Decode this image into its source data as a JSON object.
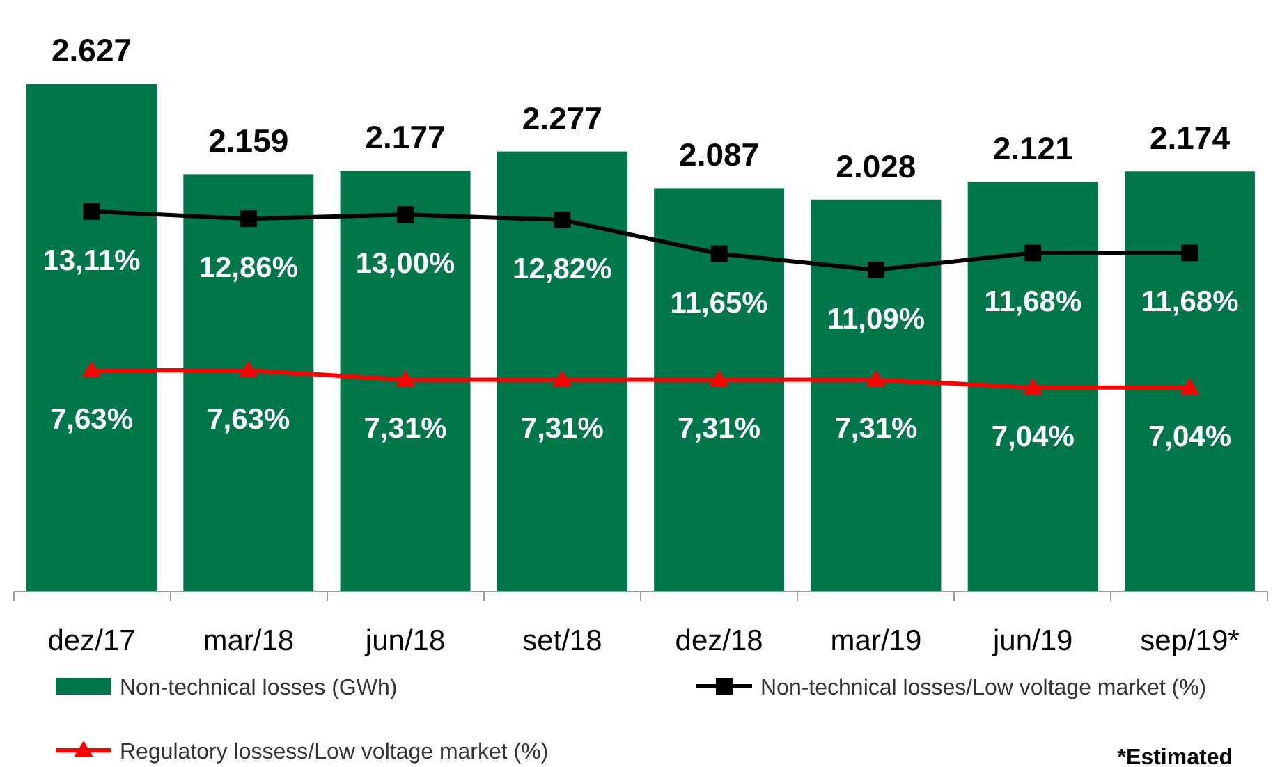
{
  "chart_data": {
    "type": "bar",
    "categories": [
      "dez/17",
      "mar/18",
      "jun/18",
      "set/18",
      "dez/18",
      "mar/19",
      "jun/19",
      "sep/19*"
    ],
    "series": [
      {
        "name": "Non-technical losses (GWh)",
        "color": "#00774a",
        "values": [
          2627,
          2159,
          2177,
          2277,
          2087,
          2028,
          2121,
          2174
        ],
        "value_labels": [
          "2.627",
          "2.159",
          "2.177",
          "2.277",
          "2.087",
          "2.028",
          "2.121",
          "2.174"
        ]
      },
      {
        "name": "Non-technical losses/Low voltage market (%)",
        "type": "line",
        "axis": "y2",
        "marker": "square",
        "color": "#000000",
        "values": [
          13.11,
          12.86,
          13.0,
          12.82,
          11.65,
          11.09,
          11.68,
          11.68
        ],
        "value_labels": [
          "13,11%",
          "12,86%",
          "13,00%",
          "12,82%",
          "11,65%",
          "11,09%",
          "11,68%",
          "11,68%"
        ]
      },
      {
        "name": "Regulatory lossess/Low voltage market (%)",
        "type": "line",
        "axis": "y2",
        "marker": "triangle",
        "color": "#ff0000",
        "values": [
          7.63,
          7.63,
          7.31,
          7.31,
          7.31,
          7.31,
          7.04,
          7.04
        ],
        "value_labels": [
          "7,63%",
          "7,63%",
          "7,31%",
          "7,31%",
          "7,31%",
          "7,31%",
          "7,04%",
          "7,04%"
        ]
      }
    ],
    "tick_labels": "x",
    "legend": "bottom",
    "annotations": [
      "*Estimated"
    ]
  }
}
